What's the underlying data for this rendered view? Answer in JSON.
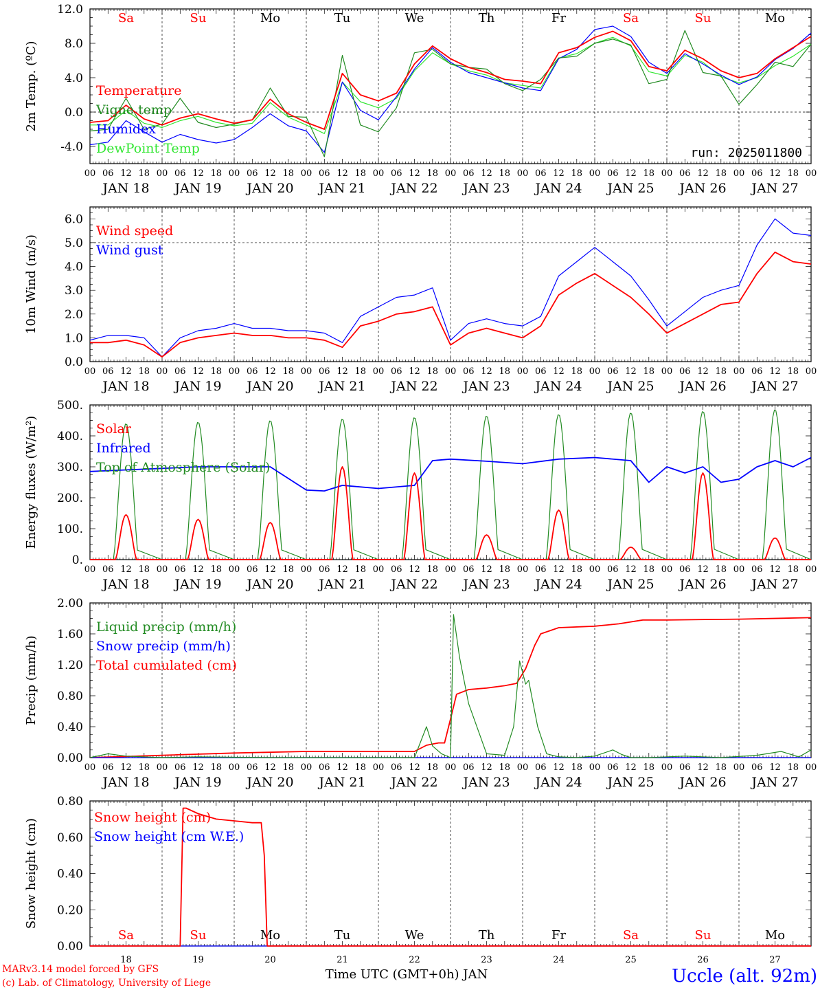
{
  "colors": {
    "red": "#ff0000",
    "darkgreen": "#228b22",
    "blue": "#0000ff",
    "lightgreen": "#32e632",
    "credit": "#ff0000",
    "station": "#0000ff"
  },
  "days": [
    {
      "abbr": "Sa",
      "date": "JAN 18",
      "num": "18",
      "color": "red"
    },
    {
      "abbr": "Su",
      "date": "JAN 19",
      "num": "19",
      "color": "red"
    },
    {
      "abbr": "Mo",
      "date": "JAN 20",
      "num": "20",
      "color": "black"
    },
    {
      "abbr": "Tu",
      "date": "JAN 21",
      "num": "21",
      "color": "black"
    },
    {
      "abbr": "We",
      "date": "JAN 22",
      "num": "22",
      "color": "black"
    },
    {
      "abbr": "Th",
      "date": "JAN 23",
      "num": "23",
      "color": "black"
    },
    {
      "abbr": "Fr",
      "date": "JAN 24",
      "num": "24",
      "color": "black"
    },
    {
      "abbr": "Sa",
      "date": "JAN 25",
      "num": "25",
      "color": "red"
    },
    {
      "abbr": "Su",
      "date": "JAN 26",
      "num": "26",
      "color": "red"
    },
    {
      "abbr": "Mo",
      "date": "JAN 27",
      "num": "27",
      "color": "black"
    }
  ],
  "hour_ticks": [
    "00",
    "06",
    "12",
    "18"
  ],
  "run_label": "run: 2025011800",
  "xlabel": "Time UTC (GMT+0h) JAN",
  "credits": [
    "MARv3.14 model forced by GFS",
    "(c) Lab. of Climatology, University of Liege"
  ],
  "station": "Uccle (alt. 92m)",
  "chart_data": [
    {
      "type": "line",
      "ylabel": "2m Temp. (ºC)",
      "ylim": [
        -6,
        12
      ],
      "yticks": [
        "-4.0",
        "0.0",
        "4.0",
        "8.0",
        "12.0"
      ],
      "ytick_values": [
        -4,
        0,
        4,
        8,
        12
      ],
      "dashed_ref": 0,
      "x_unit": "hours since JAN 18 00 UTC",
      "series": [
        {
          "name": "Temperature",
          "color": "red",
          "x": [
            0,
            6,
            12,
            18,
            24,
            30,
            36,
            42,
            48,
            54,
            60,
            66,
            72,
            78,
            84,
            90,
            96,
            102,
            108,
            114,
            120,
            126,
            132,
            138,
            144,
            150,
            156,
            162,
            168,
            174,
            180,
            186,
            192,
            198,
            204,
            210,
            216,
            222,
            228,
            234,
            240
          ],
          "y": [
            -1.2,
            -1.0,
            0.8,
            -0.8,
            -1.5,
            -0.7,
            -0.2,
            -0.8,
            -1.3,
            -0.9,
            1.5,
            -0.2,
            -1.2,
            -2.0,
            4.5,
            2.0,
            1.3,
            2.2,
            5.6,
            7.7,
            6.2,
            5.2,
            4.6,
            3.8,
            3.6,
            3.3,
            6.9,
            7.5,
            8.7,
            9.4,
            8.3,
            5.3,
            4.8,
            7.2,
            6.2,
            4.8,
            4.0,
            4.5,
            6.2,
            7.5,
            8.8
          ]
        },
        {
          "name": "Vigne temp",
          "color": "darkgreen",
          "x": [
            0,
            6,
            12,
            18,
            24,
            30,
            36,
            42,
            48,
            54,
            60,
            66,
            72,
            78,
            84,
            90,
            96,
            102,
            108,
            114,
            120,
            126,
            132,
            138,
            144,
            150,
            156,
            162,
            168,
            174,
            180,
            186,
            192,
            198,
            204,
            210,
            216,
            222,
            228,
            234,
            240
          ],
          "y": [
            -2.2,
            -2.0,
            1.6,
            -2.0,
            -1.4,
            1.6,
            -1.2,
            -1.8,
            -1.4,
            -0.9,
            2.8,
            -0.5,
            -0.6,
            -5.2,
            6.6,
            -1.5,
            -2.3,
            0.5,
            6.9,
            7.3,
            5.6,
            5.2,
            5.0,
            3.3,
            2.5,
            3.8,
            6.3,
            6.5,
            8.0,
            8.5,
            7.8,
            3.3,
            3.8,
            9.5,
            4.6,
            4.2,
            0.9,
            3.2,
            5.8,
            5.3,
            7.9
          ]
        },
        {
          "name": "Humidex",
          "color": "blue",
          "x": [
            0,
            6,
            12,
            18,
            24,
            30,
            36,
            42,
            48,
            54,
            60,
            66,
            72,
            78,
            84,
            90,
            96,
            102,
            108,
            114,
            120,
            126,
            132,
            138,
            144,
            150,
            156,
            162,
            168,
            174,
            180,
            186,
            192,
            198,
            204,
            210,
            216,
            222,
            228,
            234,
            240
          ],
          "y": [
            -3.8,
            -3.5,
            -1.0,
            -2.3,
            -3.5,
            -2.6,
            -3.2,
            -3.6,
            -3.2,
            -1.8,
            -0.2,
            -1.6,
            -2.2,
            -4.7,
            3.5,
            0.2,
            -0.9,
            1.8,
            5.0,
            7.5,
            5.8,
            4.6,
            4.0,
            3.4,
            2.8,
            2.5,
            6.2,
            7.3,
            9.6,
            10.0,
            8.8,
            5.8,
            4.5,
            6.8,
            5.6,
            4.3,
            3.2,
            4.1,
            6.1,
            7.4,
            9.2
          ]
        },
        {
          "name": "DewPoint Temp",
          "color": "lightgreen",
          "x": [
            0,
            6,
            12,
            18,
            24,
            30,
            36,
            42,
            48,
            54,
            60,
            66,
            72,
            78,
            84,
            90,
            96,
            102,
            108,
            114,
            120,
            126,
            132,
            138,
            144,
            150,
            156,
            162,
            168,
            174,
            180,
            186,
            192,
            198,
            204,
            210,
            216,
            222,
            228,
            234,
            240
          ],
          "y": [
            -1.5,
            -1.5,
            0.2,
            -1.3,
            -1.8,
            -1.0,
            -0.5,
            -1.2,
            -1.6,
            -1.3,
            1.1,
            -0.6,
            -1.5,
            -2.5,
            3.5,
            1.2,
            0.5,
            1.6,
            4.8,
            6.9,
            5.6,
            4.8,
            4.3,
            3.4,
            3.1,
            2.8,
            6.3,
            6.8,
            8.0,
            8.7,
            7.7,
            4.7,
            4.2,
            6.6,
            5.8,
            4.1,
            3.4,
            4.0,
            5.4,
            6.5,
            7.9
          ]
        }
      ]
    },
    {
      "type": "line",
      "ylabel": "10m Wind (m/s)",
      "ylim": [
        0,
        6.5
      ],
      "yticks": [
        "0.0",
        "1.0",
        "2.0",
        "3.0",
        "4.0",
        "5.0",
        "6.0"
      ],
      "ytick_values": [
        0,
        1,
        2,
        3,
        4,
        5,
        6
      ],
      "dashed_ref": 5,
      "x_unit": "hours since JAN 18 00 UTC",
      "series": [
        {
          "name": "Wind speed",
          "color": "red",
          "x": [
            0,
            6,
            12,
            18,
            24,
            30,
            36,
            42,
            48,
            54,
            60,
            66,
            72,
            78,
            84,
            90,
            96,
            102,
            108,
            114,
            120,
            126,
            132,
            138,
            144,
            150,
            156,
            162,
            168,
            174,
            180,
            186,
            192,
            198,
            204,
            210,
            216,
            222,
            228,
            234,
            240
          ],
          "y": [
            0.8,
            0.8,
            0.9,
            0.7,
            0.2,
            0.8,
            1.0,
            1.1,
            1.2,
            1.1,
            1.1,
            1.0,
            1.0,
            0.9,
            0.6,
            1.5,
            1.7,
            2.0,
            2.1,
            2.3,
            0.7,
            1.2,
            1.4,
            1.2,
            1.0,
            1.5,
            2.8,
            3.3,
            3.7,
            3.2,
            2.7,
            2.0,
            1.2,
            1.6,
            2.0,
            2.4,
            2.5,
            3.7,
            4.6,
            4.2,
            4.1
          ]
        },
        {
          "name": "Wind gust",
          "color": "blue",
          "x": [
            0,
            6,
            12,
            18,
            24,
            30,
            36,
            42,
            48,
            54,
            60,
            66,
            72,
            78,
            84,
            90,
            96,
            102,
            108,
            114,
            120,
            126,
            132,
            138,
            144,
            150,
            156,
            162,
            168,
            174,
            180,
            186,
            192,
            198,
            204,
            210,
            216,
            222,
            228,
            234,
            240
          ],
          "y": [
            0.9,
            1.1,
            1.1,
            1.0,
            0.2,
            1.0,
            1.3,
            1.4,
            1.6,
            1.4,
            1.4,
            1.3,
            1.3,
            1.2,
            0.8,
            1.9,
            2.3,
            2.7,
            2.8,
            3.1,
            0.9,
            1.6,
            1.8,
            1.6,
            1.5,
            1.9,
            3.6,
            4.2,
            4.8,
            4.2,
            3.6,
            2.6,
            1.5,
            2.1,
            2.7,
            3.0,
            3.2,
            4.9,
            6.0,
            5.4,
            5.3
          ]
        }
      ]
    },
    {
      "type": "line",
      "ylabel": "Energy fluxes (W/m²)",
      "ylim": [
        0,
        500
      ],
      "yticks": [
        "0.",
        "100.",
        "200.",
        "300.",
        "400.",
        "500."
      ],
      "ytick_values": [
        0,
        100,
        200,
        300,
        400,
        500
      ],
      "x_unit": "hours since JAN 18 00 UTC",
      "toa_daily_peak": [
        440,
        445,
        450,
        455,
        460,
        465,
        470,
        475,
        480,
        485
      ],
      "solar_daily_peak": [
        145,
        130,
        120,
        300,
        280,
        80,
        160,
        40,
        280,
        70
      ],
      "series": [
        {
          "name": "Solar",
          "color": "red"
        },
        {
          "name": "Infrared",
          "color": "blue",
          "x": [
            0,
            12,
            24,
            36,
            48,
            60,
            72,
            78,
            84,
            96,
            108,
            114,
            120,
            132,
            144,
            156,
            168,
            180,
            186,
            192,
            198,
            204,
            210,
            216,
            222,
            228,
            234,
            240
          ],
          "y": [
            285,
            290,
            295,
            300,
            300,
            300,
            225,
            222,
            240,
            230,
            240,
            320,
            325,
            318,
            310,
            325,
            330,
            320,
            250,
            300,
            280,
            300,
            250,
            260,
            300,
            320,
            300,
            330
          ]
        },
        {
          "name": "Top of Atmosphere (Solar)",
          "color": "darkgreen"
        }
      ]
    },
    {
      "type": "line",
      "ylabel": "Precip (mm/h)",
      "ylim": [
        0,
        2
      ],
      "yticks": [
        "0.00",
        "0.40",
        "0.80",
        "1.20",
        "1.60",
        "2.00"
      ],
      "ytick_values": [
        0,
        0.4,
        0.8,
        1.2,
        1.6,
        2.0
      ],
      "x_unit": "hours since JAN 18 00 UTC",
      "series": [
        {
          "name": "Liquid precip (mm/h)",
          "color": "darkgreen",
          "x": [
            0,
            6,
            12,
            24,
            36,
            60,
            108,
            112,
            114,
            117,
            120,
            121,
            123,
            126,
            132,
            138,
            141,
            143,
            144,
            145,
            146,
            147,
            149,
            152,
            156,
            162,
            168,
            174,
            177,
            180,
            186,
            198,
            210,
            222,
            230,
            236,
            240
          ],
          "y": [
            0,
            0.05,
            0.02,
            0,
            0.01,
            0,
            0,
            0.4,
            0.15,
            0.05,
            0,
            1.85,
            1.3,
            0.7,
            0.05,
            0.03,
            0.4,
            1.25,
            1.1,
            0.95,
            1.0,
            0.8,
            0.4,
            0.05,
            0.01,
            0,
            0.02,
            0.1,
            0.04,
            0,
            0,
            0.02,
            0,
            0.03,
            0.08,
            0.01,
            0.1
          ]
        },
        {
          "name": "Snow precip (mm/h)",
          "color": "blue",
          "x": [
            0,
            240
          ],
          "y": [
            0,
            0
          ]
        },
        {
          "name": "Total cumulated (cm)",
          "color": "red",
          "x": [
            0,
            24,
            48,
            72,
            96,
            108,
            112,
            116,
            118,
            120,
            122,
            126,
            132,
            138,
            142,
            145,
            148,
            150,
            156,
            168,
            176,
            184,
            192,
            216,
            240
          ],
          "y": [
            0,
            0.03,
            0.06,
            0.08,
            0.08,
            0.08,
            0.16,
            0.19,
            0.19,
            0.5,
            0.82,
            0.88,
            0.9,
            0.93,
            0.96,
            1.15,
            1.45,
            1.6,
            1.68,
            1.7,
            1.73,
            1.78,
            1.78,
            1.79,
            1.81
          ]
        }
      ]
    },
    {
      "type": "line",
      "ylabel": "Snow height (cm)",
      "ylim": [
        0,
        0.8
      ],
      "yticks": [
        "0.00",
        "0.20",
        "0.40",
        "0.60",
        "0.80"
      ],
      "ytick_values": [
        0,
        0.2,
        0.4,
        0.6,
        0.8
      ],
      "x_unit": "hours since JAN 18 00 UTC",
      "series": [
        {
          "name": "Snow height (cm)",
          "color": "red",
          "x": [
            0,
            30,
            31,
            32,
            36,
            42,
            48,
            54,
            57,
            58,
            59,
            62,
            240
          ],
          "y": [
            0,
            0,
            0.76,
            0.76,
            0.73,
            0.7,
            0.69,
            0.68,
            0.68,
            0.5,
            0,
            0,
            0
          ]
        },
        {
          "name": "Snow height (cm W.E.)",
          "color": "blue",
          "x": [
            0,
            240
          ],
          "y": [
            0,
            0
          ]
        }
      ]
    }
  ]
}
